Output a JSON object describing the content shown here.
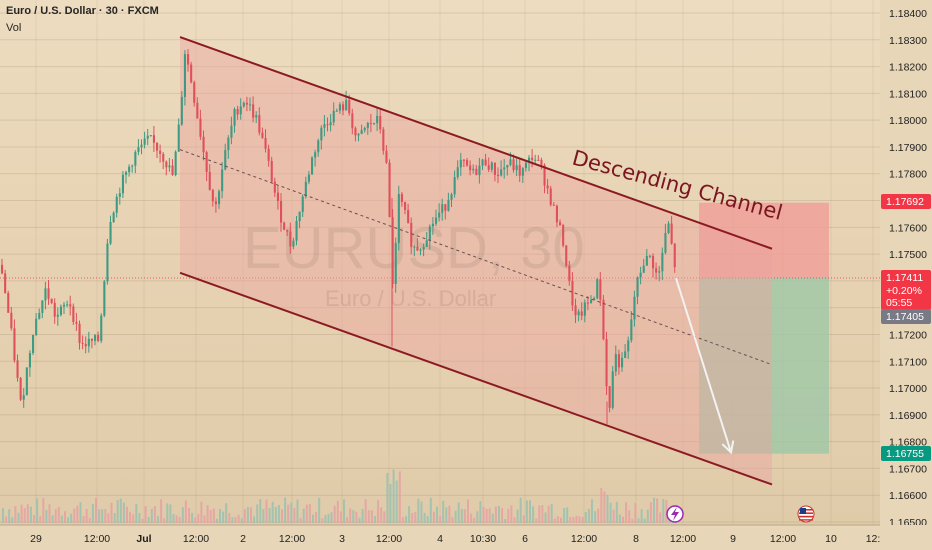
{
  "header": {
    "title": "Euro / U.S. Dollar · 30 · FXCM",
    "indicator": "Vol"
  },
  "watermark": {
    "symbol": "EURUSD, 30",
    "name": "Euro / U.S. Dollar"
  },
  "annotation": "Descending Channel",
  "price_tags": {
    "target_top": "1.17692",
    "current_price": "1.17411",
    "current_change": "+0.20%",
    "countdown": "05:55",
    "bid": "1.17405",
    "target_bottom": "1.16755"
  },
  "colors": {
    "background": "#e8d6b8",
    "channel_fill": "#eba5a0",
    "channel_line": "#8c1a22",
    "candle_up": "#3f9a83",
    "candle_down": "#e0505b",
    "projection_arrow": "#f2f2f2",
    "stop_zone": "#f09a96",
    "profit_zone": "#9dc7a6",
    "tag_red": "#f23645",
    "tag_grey": "#787b86",
    "tag_green": "#089981"
  },
  "event_icons": [
    "lightning-event",
    "us-flag-event"
  ],
  "chart_data": {
    "type": "candlestick",
    "symbol": "EURUSD",
    "timeframe": "30",
    "source": "FXCM",
    "y_axis": {
      "ticks": [
        "1.18400",
        "1.18300",
        "1.18200",
        "1.18100",
        "1.18000",
        "1.17900",
        "1.17800",
        "1.17700",
        "1.17600",
        "1.17500",
        "1.17400",
        "1.17300",
        "1.17200",
        "1.17100",
        "1.17000",
        "1.16900",
        "1.16800",
        "1.16700",
        "1.16600",
        "1.16500"
      ],
      "range": [
        1.1647,
        1.1845
      ]
    },
    "x_axis": {
      "ticks": [
        "29",
        "12:00",
        "Jul",
        "12:00",
        "2",
        "12:00",
        "3",
        "12:00",
        "4",
        "10:30",
        "6",
        "12:00",
        "8",
        "12:00",
        "9",
        "12:00",
        "10",
        "12:"
      ]
    },
    "grid": true,
    "close_path": [
      [
        0,
        1.1746
      ],
      [
        10,
        1.1721
      ],
      [
        20,
        1.1693
      ],
      [
        32,
        1.1722
      ],
      [
        45,
        1.1737
      ],
      [
        55,
        1.1726
      ],
      [
        68,
        1.1733
      ],
      [
        80,
        1.1716
      ],
      [
        98,
        1.1718
      ],
      [
        108,
        1.1762
      ],
      [
        120,
        1.1776
      ],
      [
        135,
        1.1788
      ],
      [
        148,
        1.1793
      ],
      [
        160,
        1.1788
      ],
      [
        172,
        1.1779
      ],
      [
        179,
        1.1801
      ],
      [
        184,
        1.1826
      ],
      [
        190,
        1.1815
      ],
      [
        198,
        1.1798
      ],
      [
        207,
        1.1779
      ],
      [
        214,
        1.1766
      ],
      [
        222,
        1.1784
      ],
      [
        234,
        1.1803
      ],
      [
        244,
        1.1808
      ],
      [
        256,
        1.18
      ],
      [
        266,
        1.1786
      ],
      [
        278,
        1.1766
      ],
      [
        290,
        1.1753
      ],
      [
        300,
        1.1769
      ],
      [
        312,
        1.1787
      ],
      [
        322,
        1.1798
      ],
      [
        334,
        1.1803
      ],
      [
        346,
        1.1806
      ],
      [
        356,
        1.1792
      ],
      [
        366,
        1.1798
      ],
      [
        378,
        1.18
      ],
      [
        386,
        1.1781
      ],
      [
        392,
        1.1737
      ],
      [
        398,
        1.1772
      ],
      [
        405,
        1.1763
      ],
      [
        412,
        1.1752
      ],
      [
        420,
        1.1753
      ],
      [
        432,
        1.1762
      ],
      [
        444,
        1.1768
      ],
      [
        452,
        1.1776
      ],
      [
        460,
        1.1784
      ],
      [
        472,
        1.178
      ],
      [
        484,
        1.1785
      ],
      [
        496,
        1.178
      ],
      [
        508,
        1.1784
      ],
      [
        520,
        1.178
      ],
      [
        532,
        1.1787
      ],
      [
        540,
        1.1782
      ],
      [
        550,
        1.177
      ],
      [
        562,
        1.1755
      ],
      [
        568,
        1.1739
      ],
      [
        575,
        1.1725
      ],
      [
        582,
        1.1729
      ],
      [
        592,
        1.1734
      ],
      [
        598,
        1.1741
      ],
      [
        604,
        1.171
      ],
      [
        608,
        1.1689
      ],
      [
        613,
        1.1713
      ],
      [
        620,
        1.1708
      ],
      [
        627,
        1.1716
      ],
      [
        634,
        1.1736
      ],
      [
        642,
        1.1747
      ],
      [
        650,
        1.1749
      ],
      [
        657,
        1.174
      ],
      [
        662,
        1.1752
      ],
      [
        667,
        1.1762
      ],
      [
        671,
        1.1752
      ],
      [
        676,
        1.1741
      ]
    ],
    "channel": {
      "upper": {
        "from": [
          180,
          1.1831
        ],
        "to": [
          772,
          1.1752
        ]
      },
      "lower": {
        "from": [
          180,
          1.1743
        ],
        "to": [
          772,
          1.1664
        ]
      },
      "midline": {
        "from": [
          180,
          1.1789
        ],
        "to": [
          770,
          1.1709
        ]
      }
    },
    "projection": {
      "from": [
        676,
        1.1741
      ],
      "to": [
        731,
        1.1676
      ]
    },
    "position_zones": {
      "stop": [
        1.17692,
        1.17411
      ],
      "target": [
        1.17411,
        1.16755
      ]
    }
  }
}
